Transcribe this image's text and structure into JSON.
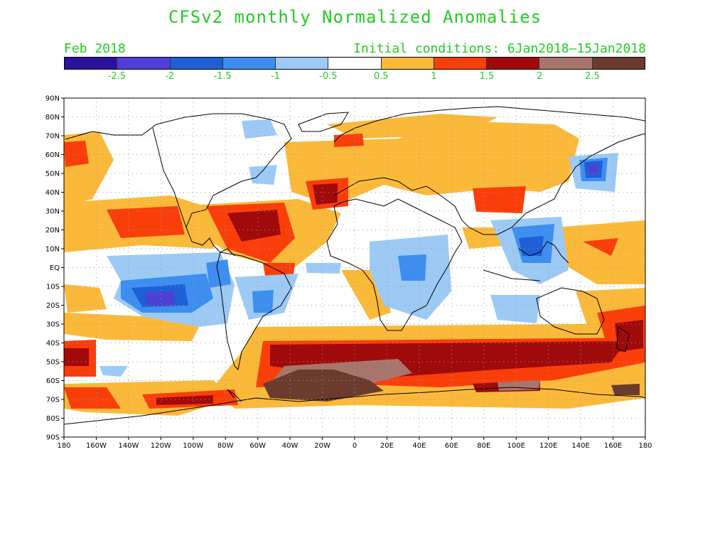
{
  "title": "CFSv2 monthly Normalized Anomalies",
  "valid_month": "Feb 2018",
  "initial_conditions": "Initial conditions: 6Jan2018—15Jan2018",
  "colorbar": {
    "colors": [
      "#2b149b",
      "#4f3fd6",
      "#1f5fd6",
      "#3d8ef0",
      "#9ccaf5",
      "#ffffff",
      "#fbb93a",
      "#fa3e0a",
      "#a10a0a",
      "#a8756d",
      "#6b3c2e"
    ],
    "labels": [
      "-2.5",
      "-2",
      "-1.5",
      "-1",
      "-0.5",
      "0.5",
      "1",
      "1.5",
      "2",
      "2.5"
    ]
  },
  "map": {
    "lat_labels": [
      "90N",
      "80N",
      "70N",
      "60N",
      "50N",
      "40N",
      "30N",
      "20N",
      "10N",
      "EQ",
      "10S",
      "20S",
      "30S",
      "40S",
      "50S",
      "60S",
      "70S",
      "80S",
      "90S"
    ],
    "lon_labels": [
      "180",
      "160W",
      "140W",
      "120W",
      "100W",
      "80W",
      "60W",
      "40W",
      "20W",
      "0",
      "20E",
      "40E",
      "60E",
      "80E",
      "100E",
      "120E",
      "140E",
      "160E",
      "180"
    ]
  }
}
